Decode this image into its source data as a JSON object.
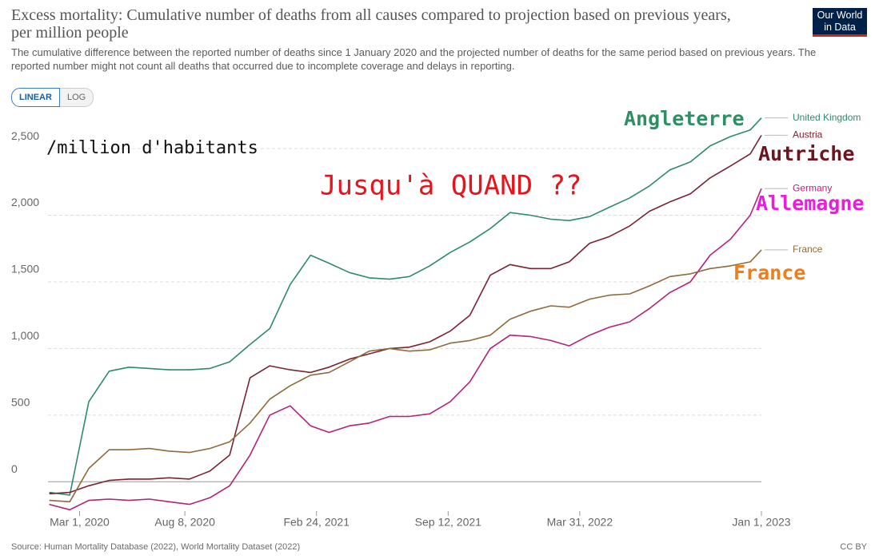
{
  "chart_data": {
    "type": "line",
    "title": "Excess mortality: Cumulative number of deaths from all causes compared to projection based on previous years, per million people",
    "subtitle": "The cumulative difference between the reported number of deaths since 1 January 2020 and the projected number of deaths for the same period based on previous years. The reported number might not count all deaths that occurred due to incomplete coverage and delays in reporting.",
    "logo": [
      "Our World",
      "in Data"
    ],
    "controls": [
      "LINEAR",
      "LOG"
    ],
    "source": "Source: Human Mortality Database (2022), World Mortality Dataset (2022)",
    "license": "CC BY",
    "annotations": [
      {
        "text": "/million d'habitants",
        "color": "#111111"
      },
      {
        "text": "Jusqu'à QUAND ??",
        "color": "#e8141b"
      },
      {
        "text": "Angleterre",
        "color": "#2f8f64"
      },
      {
        "text": "Autriche",
        "color": "#6e1420"
      },
      {
        "text": "Allemagne",
        "color": "#e81ed8"
      },
      {
        "text": "France",
        "color": "#f07d1c"
      }
    ],
    "x": [
      "2020-01-15",
      "2020-02-15",
      "2020-03-15",
      "2020-04-15",
      "2020-05-15",
      "2020-06-15",
      "2020-07-15",
      "2020-08-15",
      "2020-09-15",
      "2020-10-15",
      "2020-11-15",
      "2020-12-15",
      "2021-01-15",
      "2021-02-15",
      "2021-03-15",
      "2021-04-15",
      "2021-05-15",
      "2021-06-15",
      "2021-07-15",
      "2021-08-15",
      "2021-09-15",
      "2021-10-15",
      "2021-11-15",
      "2021-12-15",
      "2022-01-15",
      "2022-02-15",
      "2022-03-15",
      "2022-04-15",
      "2022-05-15",
      "2022-06-15",
      "2022-07-15",
      "2022-08-15",
      "2022-09-15",
      "2022-10-15",
      "2022-11-15",
      "2022-12-15",
      "2023-01-01"
    ],
    "xlim": [
      "2020-01-13",
      "2023-01-01"
    ],
    "xticks": [
      {
        "value": "2020-03-01",
        "label": "Mar 1, 2020"
      },
      {
        "value": "2020-08-08",
        "label": "Aug 8, 2020"
      },
      {
        "value": "2021-02-24",
        "label": "Feb 24, 2021"
      },
      {
        "value": "2021-09-12",
        "label": "Sep 12, 2021"
      },
      {
        "value": "2022-03-31",
        "label": "Mar 31, 2022"
      },
      {
        "value": "2023-01-01",
        "label": "Jan 1, 2023"
      }
    ],
    "ylim": [
      -250,
      2800
    ],
    "yticks": [
      0,
      500,
      {
        "value": 1000,
        "label": "1,000"
      },
      {
        "value": 1500,
        "label": "1,500"
      },
      {
        "value": 2000,
        "label": "2,000"
      },
      {
        "value": 2500,
        "label": "2,500"
      }
    ],
    "grid": true,
    "series": [
      {
        "name": "United Kingdom",
        "color": "#2f8a6a",
        "values": [
          -80,
          -100,
          600,
          830,
          860,
          850,
          840,
          840,
          850,
          900,
          1030,
          1150,
          1480,
          1700,
          1640,
          1570,
          1530,
          1520,
          1540,
          1620,
          1720,
          1800,
          1900,
          2020,
          2000,
          1970,
          1960,
          1990,
          2060,
          2130,
          2220,
          2340,
          2400,
          2520,
          2590,
          2640,
          2730
        ]
      },
      {
        "name": "Austria",
        "color": "#7a2331",
        "values": [
          -90,
          -80,
          -30,
          10,
          20,
          20,
          30,
          20,
          80,
          200,
          780,
          870,
          840,
          820,
          860,
          920,
          960,
          1000,
          1010,
          1050,
          1130,
          1250,
          1550,
          1630,
          1600,
          1600,
          1650,
          1790,
          1840,
          1920,
          2030,
          2100,
          2160,
          2280,
          2370,
          2460,
          2600
        ]
      },
      {
        "name": "Germany",
        "color": "#b3237a",
        "values": [
          -170,
          -210,
          -140,
          -130,
          -140,
          -130,
          -150,
          -170,
          -120,
          -30,
          200,
          500,
          570,
          420,
          370,
          420,
          440,
          490,
          490,
          510,
          600,
          750,
          1000,
          1100,
          1090,
          1060,
          1020,
          1100,
          1160,
          1200,
          1300,
          1420,
          1500,
          1700,
          1820,
          2000,
          2200
        ]
      },
      {
        "name": "France",
        "color": "#8f6a3b",
        "values": [
          -140,
          -150,
          100,
          240,
          240,
          250,
          230,
          220,
          250,
          300,
          440,
          620,
          720,
          800,
          820,
          900,
          980,
          1000,
          980,
          990,
          1040,
          1060,
          1100,
          1220,
          1280,
          1320,
          1310,
          1370,
          1400,
          1410,
          1470,
          1540,
          1560,
          1600,
          1620,
          1650,
          1740
        ]
      }
    ]
  }
}
